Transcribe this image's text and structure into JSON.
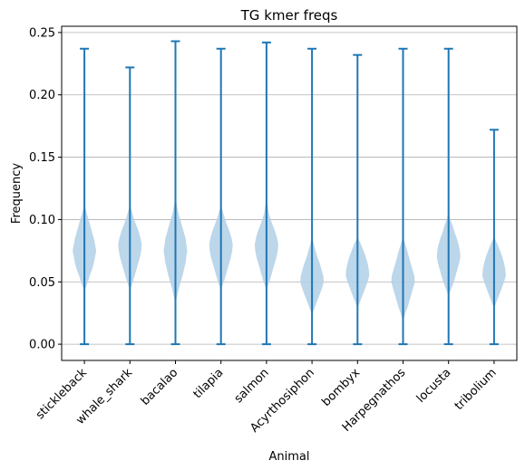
{
  "chart_data": {
    "type": "violin",
    "title": "TG kmer freqs",
    "xlabel": "Animal",
    "ylabel": "Frequency",
    "ylim": [
      -0.013,
      0.255
    ],
    "y_ticks": [
      0.0,
      0.05,
      0.1,
      0.15,
      0.2,
      0.25
    ],
    "y_tick_labels": [
      "0.00",
      "0.05",
      "0.10",
      "0.15",
      "0.20",
      "0.25"
    ],
    "grid": "y-major",
    "colors": {
      "body": "#b5d1e8",
      "lines": "#1f77b4",
      "grid": "#b0b0b0"
    },
    "categories": [
      "stickleback",
      "whale_shark",
      "bacalao",
      "tilapia",
      "salmon",
      "Acyrthosiphon",
      "bombyx",
      "Harpegnathos",
      "locusta",
      "tribolium"
    ],
    "violins": [
      {
        "min": 0.0,
        "max": 0.237,
        "median": 0.075,
        "density": [
          [
            0.045,
            0.1
          ],
          [
            0.05,
            0.3
          ],
          [
            0.055,
            0.45
          ],
          [
            0.06,
            0.65
          ],
          [
            0.065,
            0.8
          ],
          [
            0.07,
            0.9
          ],
          [
            0.075,
            1.0
          ],
          [
            0.08,
            0.9
          ],
          [
            0.085,
            0.8
          ],
          [
            0.09,
            0.65
          ],
          [
            0.095,
            0.5
          ],
          [
            0.1,
            0.35
          ],
          [
            0.105,
            0.2
          ],
          [
            0.11,
            0.05
          ]
        ]
      },
      {
        "min": 0.0,
        "max": 0.222,
        "median": 0.08,
        "density": [
          [
            0.045,
            0.05
          ],
          [
            0.05,
            0.25
          ],
          [
            0.055,
            0.4
          ],
          [
            0.06,
            0.55
          ],
          [
            0.065,
            0.7
          ],
          [
            0.07,
            0.85
          ],
          [
            0.075,
            0.95
          ],
          [
            0.08,
            1.0
          ],
          [
            0.085,
            0.9
          ],
          [
            0.09,
            0.75
          ],
          [
            0.095,
            0.55
          ],
          [
            0.1,
            0.35
          ],
          [
            0.105,
            0.2
          ],
          [
            0.11,
            0.05
          ]
        ]
      },
      {
        "min": 0.0,
        "max": 0.243,
        "median": 0.074,
        "density": [
          [
            0.035,
            0.05
          ],
          [
            0.045,
            0.3
          ],
          [
            0.055,
            0.6
          ],
          [
            0.065,
            0.85
          ],
          [
            0.075,
            1.0
          ],
          [
            0.085,
            0.85
          ],
          [
            0.095,
            0.55
          ],
          [
            0.105,
            0.25
          ],
          [
            0.115,
            0.05
          ]
        ]
      },
      {
        "min": 0.0,
        "max": 0.237,
        "median": 0.08,
        "density": [
          [
            0.045,
            0.05
          ],
          [
            0.05,
            0.25
          ],
          [
            0.055,
            0.4
          ],
          [
            0.06,
            0.55
          ],
          [
            0.065,
            0.7
          ],
          [
            0.07,
            0.85
          ],
          [
            0.075,
            0.95
          ],
          [
            0.08,
            1.0
          ],
          [
            0.085,
            0.9
          ],
          [
            0.09,
            0.75
          ],
          [
            0.095,
            0.55
          ],
          [
            0.1,
            0.35
          ],
          [
            0.105,
            0.2
          ],
          [
            0.11,
            0.05
          ]
        ]
      },
      {
        "min": 0.0,
        "max": 0.242,
        "median": 0.08,
        "density": [
          [
            0.045,
            0.05
          ],
          [
            0.05,
            0.25
          ],
          [
            0.055,
            0.4
          ],
          [
            0.06,
            0.55
          ],
          [
            0.065,
            0.7
          ],
          [
            0.07,
            0.85
          ],
          [
            0.075,
            0.95
          ],
          [
            0.08,
            1.0
          ],
          [
            0.085,
            0.9
          ],
          [
            0.09,
            0.75
          ],
          [
            0.095,
            0.55
          ],
          [
            0.1,
            0.35
          ],
          [
            0.105,
            0.2
          ],
          [
            0.115,
            0.05
          ]
        ]
      },
      {
        "min": 0.0,
        "max": 0.237,
        "median": 0.055,
        "density": [
          [
            0.025,
            0.05
          ],
          [
            0.03,
            0.25
          ],
          [
            0.035,
            0.45
          ],
          [
            0.04,
            0.65
          ],
          [
            0.045,
            0.85
          ],
          [
            0.05,
            1.0
          ],
          [
            0.055,
            0.95
          ],
          [
            0.06,
            0.8
          ],
          [
            0.065,
            0.65
          ],
          [
            0.07,
            0.45
          ],
          [
            0.075,
            0.3
          ],
          [
            0.08,
            0.15
          ],
          [
            0.085,
            0.05
          ]
        ]
      },
      {
        "min": 0.0,
        "max": 0.232,
        "median": 0.06,
        "density": [
          [
            0.03,
            0.05
          ],
          [
            0.035,
            0.25
          ],
          [
            0.04,
            0.45
          ],
          [
            0.045,
            0.65
          ],
          [
            0.05,
            0.85
          ],
          [
            0.055,
            1.0
          ],
          [
            0.06,
            0.95
          ],
          [
            0.065,
            0.85
          ],
          [
            0.07,
            0.7
          ],
          [
            0.075,
            0.5
          ],
          [
            0.08,
            0.3
          ],
          [
            0.085,
            0.05
          ]
        ]
      },
      {
        "min": 0.0,
        "max": 0.237,
        "median": 0.055,
        "density": [
          [
            0.02,
            0.05
          ],
          [
            0.025,
            0.2
          ],
          [
            0.03,
            0.4
          ],
          [
            0.035,
            0.55
          ],
          [
            0.04,
            0.7
          ],
          [
            0.045,
            0.85
          ],
          [
            0.05,
            1.0
          ],
          [
            0.055,
            0.95
          ],
          [
            0.06,
            0.8
          ],
          [
            0.065,
            0.65
          ],
          [
            0.07,
            0.5
          ],
          [
            0.075,
            0.35
          ],
          [
            0.08,
            0.2
          ],
          [
            0.085,
            0.05
          ]
        ]
      },
      {
        "min": 0.0,
        "max": 0.237,
        "median": 0.07,
        "density": [
          [
            0.04,
            0.05
          ],
          [
            0.045,
            0.25
          ],
          [
            0.05,
            0.45
          ],
          [
            0.055,
            0.6
          ],
          [
            0.06,
            0.75
          ],
          [
            0.065,
            0.9
          ],
          [
            0.07,
            1.0
          ],
          [
            0.075,
            0.95
          ],
          [
            0.08,
            0.85
          ],
          [
            0.085,
            0.7
          ],
          [
            0.09,
            0.5
          ],
          [
            0.095,
            0.35
          ],
          [
            0.1,
            0.15
          ],
          [
            0.105,
            0.05
          ]
        ]
      },
      {
        "min": 0.0,
        "max": 0.172,
        "median": 0.06,
        "density": [
          [
            0.03,
            0.05
          ],
          [
            0.035,
            0.25
          ],
          [
            0.04,
            0.45
          ],
          [
            0.045,
            0.65
          ],
          [
            0.05,
            0.85
          ],
          [
            0.055,
            1.0
          ],
          [
            0.06,
            0.95
          ],
          [
            0.065,
            0.85
          ],
          [
            0.07,
            0.7
          ],
          [
            0.075,
            0.5
          ],
          [
            0.08,
            0.3
          ],
          [
            0.085,
            0.05
          ]
        ]
      }
    ]
  }
}
